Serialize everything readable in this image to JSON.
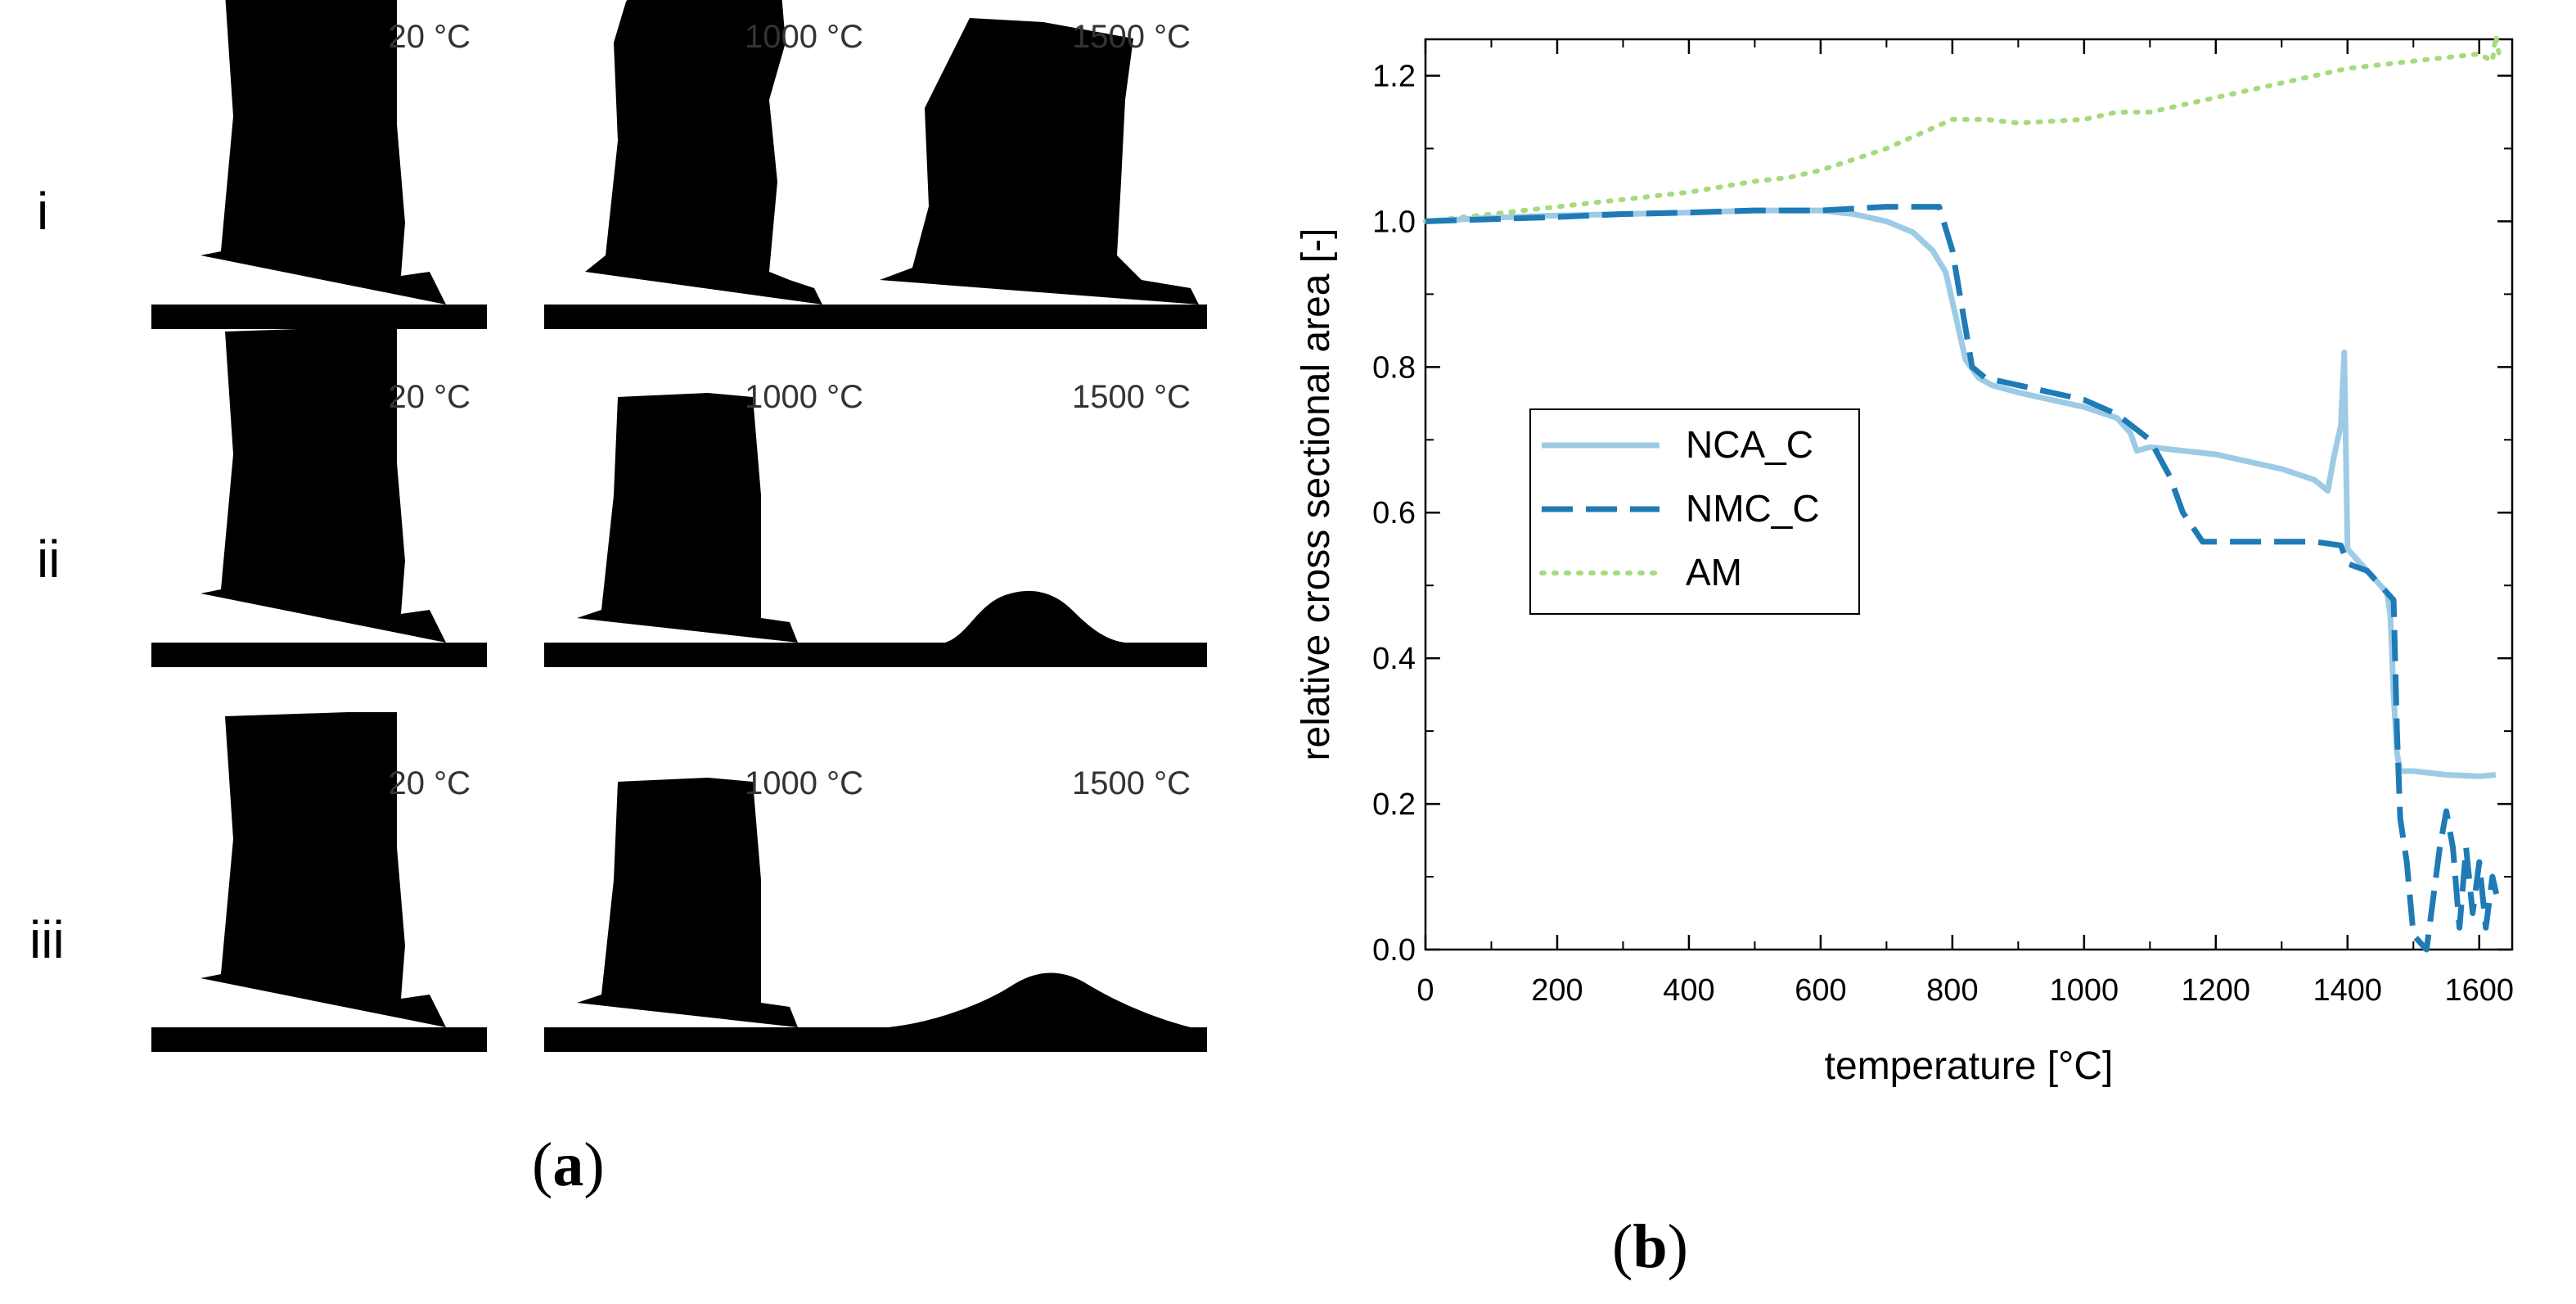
{
  "panel_a": {
    "rows": [
      {
        "label": "i",
        "images": [
          {
            "temp": "20 °C",
            "shape": "block-fresh"
          },
          {
            "temp": "1000 °C",
            "shape": "block-tilt"
          },
          {
            "temp": "1500 °C",
            "shape": "block-tilt2"
          }
        ]
      },
      {
        "label": "ii",
        "images": [
          {
            "temp": "20 °C",
            "shape": "block-fresh"
          },
          {
            "temp": "1000 °C",
            "shape": "block-shrunk"
          },
          {
            "temp": "1500 °C",
            "shape": "dome-small"
          }
        ]
      },
      {
        "label": "iii",
        "images": [
          {
            "temp": "20 °C",
            "shape": "block-fresh"
          },
          {
            "temp": "1000 °C",
            "shape": "block-shrunk"
          },
          {
            "temp": "1500 °C",
            "shape": "dome-wide"
          }
        ]
      }
    ],
    "caption_letter": "a"
  },
  "panel_b": {
    "caption_letter": "b"
  },
  "chart_data": {
    "type": "line",
    "title": "",
    "xlabel": "temperature [°C]",
    "ylabel": "relative cross sectional area [-]",
    "xlim": [
      0,
      1650
    ],
    "ylim": [
      0,
      1.25
    ],
    "xticks": [
      0,
      200,
      400,
      600,
      800,
      1000,
      1200,
      1400,
      1600
    ],
    "yticks": [
      0.0,
      0.2,
      0.4,
      0.6,
      0.8,
      1.0,
      1.2
    ],
    "xtick_labels": [
      "0",
      "200",
      "400",
      "600",
      "800",
      "1000",
      "1200",
      "1400",
      "1600"
    ],
    "ytick_labels": [
      "0.0",
      "0.2",
      "0.4",
      "0.6",
      "0.8",
      "1.0",
      "1.2"
    ],
    "legend_position": "left-middle",
    "series": [
      {
        "name": "NCA_C",
        "color": "#9dcbe6",
        "style": "solid",
        "x": [
          0,
          100,
          200,
          300,
          400,
          500,
          600,
          650,
          700,
          740,
          770,
          790,
          800,
          810,
          820,
          840,
          860,
          900,
          950,
          1000,
          1050,
          1070,
          1080,
          1100,
          1150,
          1200,
          1250,
          1300,
          1350,
          1370,
          1380,
          1390,
          1395,
          1400,
          1410,
          1430,
          1450,
          1460,
          1465,
          1470,
          1475,
          1480,
          1500,
          1550,
          1600,
          1625
        ],
        "y": [
          1.0,
          1.005,
          1.008,
          1.01,
          1.012,
          1.015,
          1.015,
          1.01,
          1.0,
          0.985,
          0.96,
          0.93,
          0.89,
          0.85,
          0.81,
          0.785,
          0.775,
          0.765,
          0.755,
          0.745,
          0.73,
          0.71,
          0.685,
          0.69,
          0.685,
          0.68,
          0.67,
          0.66,
          0.645,
          0.63,
          0.68,
          0.72,
          0.82,
          0.55,
          0.54,
          0.52,
          0.5,
          0.49,
          0.46,
          0.35,
          0.27,
          0.245,
          0.245,
          0.24,
          0.238,
          0.24
        ]
      },
      {
        "name": "NMC_C",
        "color": "#1f7bb6",
        "style": "dashed",
        "x": [
          0,
          100,
          200,
          300,
          400,
          500,
          600,
          700,
          780,
          800,
          830,
          850,
          900,
          950,
          1000,
          1050,
          1100,
          1130,
          1150,
          1180,
          1200,
          1300,
          1350,
          1390,
          1400,
          1430,
          1450,
          1470,
          1475,
          1480,
          1490,
          1500,
          1510,
          1520,
          1540,
          1550,
          1560,
          1570,
          1580,
          1590,
          1600,
          1610,
          1620,
          1630
        ],
        "y": [
          1.0,
          1.003,
          1.006,
          1.01,
          1.012,
          1.015,
          1.015,
          1.02,
          1.02,
          0.96,
          0.8,
          0.785,
          0.775,
          0.765,
          0.755,
          0.735,
          0.7,
          0.65,
          0.6,
          0.56,
          0.56,
          0.56,
          0.56,
          0.555,
          0.53,
          0.52,
          0.5,
          0.48,
          0.3,
          0.18,
          0.12,
          0.02,
          0.01,
          0.0,
          0.14,
          0.19,
          0.14,
          0.03,
          0.14,
          0.05,
          0.12,
          0.03,
          0.1,
          0.06
        ]
      },
      {
        "name": "AM",
        "color": "#a6db7c",
        "style": "dotted",
        "x": [
          0,
          100,
          200,
          300,
          400,
          500,
          550,
          600,
          650,
          700,
          750,
          800,
          850,
          900,
          1000,
          1050,
          1100,
          1150,
          1200,
          1250,
          1300,
          1350,
          1400,
          1450,
          1500,
          1550,
          1580,
          1600,
          1620,
          1625,
          1630
        ],
        "y": [
          1.0,
          1.01,
          1.02,
          1.03,
          1.04,
          1.055,
          1.06,
          1.07,
          1.085,
          1.1,
          1.12,
          1.14,
          1.14,
          1.135,
          1.14,
          1.15,
          1.15,
          1.16,
          1.17,
          1.18,
          1.19,
          1.2,
          1.21,
          1.215,
          1.22,
          1.225,
          1.228,
          1.23,
          1.22,
          1.255,
          1.23
        ]
      }
    ]
  }
}
